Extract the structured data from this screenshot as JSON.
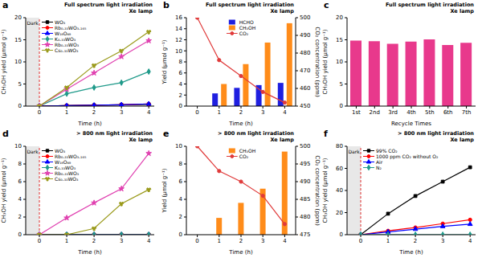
{
  "chart_data": [
    {
      "type": "line",
      "title": "a",
      "annotations": [
        "Full spectrum light irradiation",
        "Xe lamp"
      ],
      "dark_label": "Dark",
      "dark_end": 0,
      "x_label": "Time (h)",
      "y_label": "CH₃OH yield (μmol g⁻¹)",
      "x": [
        0,
        1,
        2,
        3,
        4
      ],
      "xlim": [
        -0.5,
        4.2
      ],
      "xticks": [
        0,
        1,
        2,
        3,
        4
      ],
      "ylim": [
        0,
        20
      ],
      "yticks": [
        0,
        5,
        10,
        15,
        20
      ],
      "legend": "upper left",
      "series": [
        {
          "name": "WO₃",
          "color": "#000000",
          "marker": "square",
          "values": [
            0,
            0.1,
            0.2,
            0.3,
            0.4
          ]
        },
        {
          "name": "Rb₀.₃₃WO₃.₁₆₅",
          "color": "#ff0000",
          "marker": "circle",
          "values": [
            0,
            0.1,
            0.2,
            0.3,
            0.5
          ]
        },
        {
          "name": "W₁₈O₄₉",
          "color": "#0000ff",
          "marker": "triangle",
          "values": [
            0,
            0.1,
            0.2,
            0.3,
            0.5
          ]
        },
        {
          "name": "K₀.₃₃WO₃",
          "color": "#1f9a8a",
          "marker": "diamond",
          "values": [
            0,
            2.8,
            4.2,
            5.3,
            7.8
          ]
        },
        {
          "name": "Rb₀.₃₃WO₃",
          "color": "#e040b0",
          "marker": "star",
          "values": [
            0,
            3.8,
            7.5,
            11.2,
            14.8
          ]
        },
        {
          "name": "Cs₀.₃₃WO₃",
          "color": "#9a9a1a",
          "marker": "wye",
          "values": [
            0,
            4.2,
            9.2,
            12.5,
            16.8
          ]
        }
      ]
    },
    {
      "type": "bar",
      "title": "b",
      "annotations": [
        "Full spectrum light irradiation",
        "Xe lamp"
      ],
      "x_label": "Time (h)",
      "y_label": "Yield (μmol g⁻¹)",
      "y2_label": "CO₂ concentration (ppm)",
      "categories": [
        "0",
        "1",
        "2",
        "3",
        "4"
      ],
      "ylim": [
        0,
        16
      ],
      "yticks": [
        0,
        2,
        4,
        6,
        8,
        10,
        12,
        14,
        16
      ],
      "y2lim": [
        450,
        500
      ],
      "y2ticks": [
        450,
        460,
        470,
        480,
        490,
        500
      ],
      "legend": "upper center",
      "series": [
        {
          "name": "HCHO",
          "color": "#1f1fe0",
          "values": [
            0,
            2.3,
            3.3,
            3.8,
            4.2
          ]
        },
        {
          "name": "CH₃OH",
          "color": "#ff8c1a",
          "values": [
            0,
            4.0,
            7.6,
            11.5,
            15.0
          ]
        },
        {
          "name": "CO₂",
          "type": "line",
          "axis": "y2",
          "color": "#e03a3a",
          "marker": "circle",
          "values": [
            500,
            476,
            467,
            458,
            452
          ]
        }
      ]
    },
    {
      "type": "bar",
      "title": "c",
      "annotations": [
        "Full spectrum light irradiation",
        "Xe lamp"
      ],
      "x_label": "Recycle Times",
      "y_label": "CH₃OH yield (μmol g⁻¹)",
      "categories": [
        "1st",
        "2nd",
        "3rd",
        "4th",
        "5th",
        "6th",
        "7th"
      ],
      "values": [
        14.8,
        14.7,
        14.1,
        14.6,
        15.1,
        13.8,
        14.3
      ],
      "color": "#e8398c",
      "ylim": [
        0,
        20
      ],
      "yticks": [
        0,
        5,
        10,
        15,
        20
      ]
    },
    {
      "type": "line",
      "title": "d",
      "annotations": [
        "> 800 nm light irradiation",
        "Xe lamp"
      ],
      "dark_label": "Dark",
      "dark_end": 0,
      "x_label": "Time (h)",
      "y_label": "CH₃OH yield (μmol g⁻¹)",
      "x": [
        0,
        1,
        2,
        3,
        4
      ],
      "xlim": [
        -0.5,
        4.2
      ],
      "xticks": [
        0,
        1,
        2,
        3,
        4
      ],
      "ylim": [
        0,
        10
      ],
      "yticks": [
        0,
        2,
        4,
        6,
        8,
        10
      ],
      "legend": "upper left",
      "series": [
        {
          "name": "WO₃",
          "color": "#000000",
          "marker": "square",
          "values": [
            0,
            0,
            0,
            0,
            0
          ]
        },
        {
          "name": "Rb₀.₃₃WO₃.₁₆₅",
          "color": "#ff0000",
          "marker": "circle",
          "values": [
            0,
            0,
            0,
            0,
            0
          ]
        },
        {
          "name": "W₁₈O₄₉",
          "color": "#0000ff",
          "marker": "triangle",
          "values": [
            0,
            0,
            0,
            0,
            0
          ]
        },
        {
          "name": "K₀.₃₃WO₃",
          "color": "#1f9a8a",
          "marker": "diamond",
          "values": [
            0,
            0,
            0,
            0,
            0
          ]
        },
        {
          "name": "Rb₀.₃₃WO₃",
          "color": "#e040b0",
          "marker": "star",
          "values": [
            0,
            1.9,
            3.6,
            5.2,
            9.2
          ]
        },
        {
          "name": "Cs₀.₃₃WO₃",
          "color": "#9a9a1a",
          "marker": "wye",
          "values": [
            0,
            0,
            0.7,
            3.5,
            5.1
          ]
        }
      ]
    },
    {
      "type": "bar",
      "title": "e",
      "annotations": [
        "> 800 nm light irradiation",
        "Xe lamp"
      ],
      "x_label": "Time (h)",
      "y_label": "Yield (μmol g⁻¹)",
      "y2_label": "CO₂ concentration (ppm)",
      "categories": [
        "0",
        "1",
        "2",
        "3",
        "4"
      ],
      "ylim": [
        0,
        10
      ],
      "yticks": [
        0,
        2,
        4,
        6,
        8,
        10
      ],
      "y2lim": [
        475,
        500
      ],
      "y2ticks": [
        475,
        480,
        485,
        490,
        495,
        500
      ],
      "legend": "upper center",
      "series": [
        {
          "name": "CH₃OH",
          "color": "#ff8c1a",
          "values": [
            0,
            1.9,
            3.6,
            5.2,
            9.4
          ]
        },
        {
          "name": "CO₂",
          "type": "line",
          "axis": "y2",
          "color": "#e03a3a",
          "marker": "circle",
          "values": [
            500,
            493,
            490,
            486,
            478
          ]
        }
      ]
    },
    {
      "type": "line",
      "title": "f",
      "annotations": [
        "> 800 nm light irradiation",
        "Xe lamp"
      ],
      "dark_label": "Dark",
      "dark_end": 0,
      "x_label": "Time (h)",
      "y_label": "CH₃OH yield (μmol g⁻¹)",
      "x": [
        0,
        1,
        2,
        3,
        4
      ],
      "xlim": [
        -0.5,
        4.2
      ],
      "xticks": [
        0,
        1,
        2,
        3,
        4
      ],
      "ylim": [
        0,
        80
      ],
      "yticks": [
        0,
        20,
        40,
        60,
        80
      ],
      "legend": "upper left",
      "series": [
        {
          "name": "99% CO₂",
          "color": "#000000",
          "marker": "square",
          "values": [
            0,
            19,
            35,
            48,
            61
          ]
        },
        {
          "name": "1000 ppm CO₂ without O₂",
          "color": "#ff0000",
          "marker": "circle",
          "values": [
            0,
            3.5,
            6.5,
            10,
            13.5
          ]
        },
        {
          "name": "Air",
          "color": "#0000ff",
          "marker": "triangle",
          "values": [
            0,
            2.5,
            5,
            7.5,
            9.5
          ]
        },
        {
          "name": "N₂",
          "color": "#1f9a8a",
          "marker": "diamond",
          "values": [
            0,
            0,
            0,
            0,
            0
          ]
        }
      ]
    }
  ]
}
